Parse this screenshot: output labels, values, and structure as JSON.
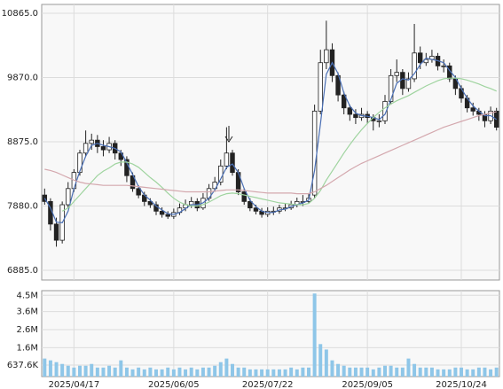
{
  "chart_data": [
    {
      "type": "candlestick",
      "ylim": [
        6734,
        11002
      ],
      "yticks": [
        {
          "value": 10865,
          "label": "10865.0"
        },
        {
          "value": 9870,
          "label": "9870.0"
        },
        {
          "value": 8875,
          "label": "8875.0"
        },
        {
          "value": 7880,
          "label": "7880.0"
        },
        {
          "value": 6885,
          "label": "6885.0"
        }
      ],
      "grid": true,
      "open": [
        8050,
        7950,
        7600,
        7350,
        7900,
        8150,
        8400,
        8700,
        8850,
        8900,
        8800,
        8750,
        8850,
        8700,
        8600,
        8350,
        8150,
        8050,
        7950,
        7900,
        7800,
        7750,
        7720,
        7780,
        7850,
        7900,
        7950,
        7850,
        8000,
        8150,
        8250,
        8500,
        8700,
        8400,
        8100,
        7950,
        7850,
        7800,
        7750,
        7800,
        7800,
        7850,
        7850,
        7900,
        7950,
        7950,
        8050,
        9350,
        10100,
        10300,
        9900,
        9600,
        9400,
        9300,
        9250,
        9300,
        9250,
        9200,
        9200,
        9500,
        9900,
        9950,
        9700,
        9850,
        10250,
        10100,
        10150,
        10200,
        10050,
        10050,
        9850,
        9700,
        9550,
        9400,
        9350,
        9300,
        9200,
        9350
      ],
      "high": [
        8150,
        8000,
        7700,
        7950,
        8250,
        8450,
        8750,
        9050,
        9000,
        8980,
        8900,
        8950,
        8900,
        8750,
        8650,
        8400,
        8200,
        8100,
        8000,
        7950,
        7860,
        7800,
        7840,
        7920,
        7980,
        8020,
        8000,
        8080,
        8220,
        8330,
        8600,
        9100,
        8750,
        8450,
        8150,
        8000,
        7900,
        7850,
        7860,
        7870,
        7900,
        7920,
        7960,
        8010,
        8050,
        8080,
        9450,
        10300,
        10750,
        10400,
        9950,
        9650,
        9450,
        9380,
        9400,
        9350,
        9300,
        9300,
        9600,
        10000,
        10150,
        10000,
        9950,
        10700,
        10350,
        10250,
        10300,
        10250,
        10150,
        10100,
        9900,
        9750,
        9600,
        9480,
        9400,
        9350,
        9420,
        9400
      ],
      "low": [
        7900,
        7500,
        7250,
        7300,
        7850,
        8100,
        8350,
        8650,
        8750,
        8700,
        8650,
        8700,
        8600,
        8500,
        8250,
        8100,
        8000,
        7880,
        7850,
        7740,
        7700,
        7680,
        7680,
        7740,
        7800,
        7850,
        7800,
        7820,
        7960,
        8100,
        8200,
        8450,
        8350,
        8050,
        7900,
        7800,
        7750,
        7700,
        7710,
        7740,
        7760,
        7800,
        7820,
        7860,
        7880,
        7920,
        8000,
        9300,
        10000,
        9800,
        9500,
        9300,
        9200,
        9150,
        9200,
        9150,
        9050,
        9100,
        9150,
        9450,
        9800,
        9600,
        9650,
        9800,
        10000,
        10050,
        10100,
        9980,
        9950,
        9800,
        9600,
        9480,
        9330,
        9280,
        9200,
        9100,
        9150,
        9050
      ],
      "close": [
        7950,
        7600,
        7350,
        7900,
        8150,
        8400,
        8700,
        8850,
        8900,
        8800,
        8750,
        8850,
        8700,
        8600,
        8350,
        8150,
        8050,
        7950,
        7900,
        7800,
        7750,
        7720,
        7780,
        7850,
        7900,
        7950,
        7850,
        8000,
        8150,
        8250,
        8500,
        8700,
        8400,
        8100,
        7950,
        7850,
        7800,
        7750,
        7800,
        7800,
        7850,
        7850,
        7900,
        7950,
        7950,
        8000,
        9350,
        10100,
        10300,
        9900,
        9600,
        9400,
        9300,
        9250,
        9300,
        9250,
        9200,
        9200,
        9500,
        9900,
        9950,
        9700,
        9850,
        10250,
        10100,
        10150,
        10200,
        10050,
        10050,
        9850,
        9700,
        9550,
        9400,
        9350,
        9300,
        9200,
        9350,
        9100
      ],
      "overlays": [
        {
          "color": "#4a6fb5",
          "values": [
            8000,
            7850,
            7630,
            7620,
            7800,
            8150,
            8420,
            8650,
            8820,
            8850,
            8820,
            8800,
            8770,
            8720,
            8550,
            8370,
            8180,
            8050,
            7970,
            7880,
            7820,
            7760,
            7750,
            7780,
            7840,
            7900,
            7900,
            7930,
            8000,
            8130,
            8300,
            8480,
            8530,
            8400,
            8150,
            7970,
            7870,
            7800,
            7780,
            7780,
            7820,
            7830,
            7870,
            7900,
            7930,
            7970,
            8430,
            9150,
            9920,
            10100,
            9930,
            9630,
            9430,
            9320,
            9280,
            9270,
            9250,
            9220,
            9300,
            9530,
            9780,
            9850,
            9830,
            9930,
            10070,
            10170,
            10150,
            10130,
            10100,
            9980,
            9870,
            9700,
            9550,
            9430,
            9350,
            9280,
            9280,
            9220
          ]
        },
        {
          "color": "#9fd49f",
          "values": [
            null,
            null,
            null,
            7800,
            7850,
            7950,
            8050,
            8150,
            8250,
            8350,
            8420,
            8470,
            8530,
            8560,
            8560,
            8530,
            8480,
            8400,
            8320,
            8250,
            8170,
            8080,
            8000,
            7940,
            7900,
            7880,
            7880,
            7900,
            7940,
            7990,
            8040,
            8070,
            8080,
            8070,
            8050,
            8030,
            8010,
            7990,
            7970,
            7950,
            7930,
            7920,
            7910,
            7900,
            7900,
            7920,
            8000,
            8120,
            8280,
            8420,
            8560,
            8700,
            8830,
            8950,
            9060,
            9160,
            9250,
            9330,
            9400,
            9460,
            9510,
            9550,
            9590,
            9640,
            9690,
            9740,
            9780,
            9820,
            9850,
            9860,
            9860,
            9850,
            9830,
            9800,
            9770,
            9730,
            9700,
            9660
          ]
        },
        {
          "color": "#d4a8ae",
          "values": [
            8450,
            8430,
            8400,
            8360,
            8320,
            8280,
            8250,
            8230,
            8220,
            8210,
            8200,
            8200,
            8200,
            8200,
            8200,
            8190,
            8180,
            8170,
            8160,
            8150,
            8140,
            8130,
            8120,
            8110,
            8100,
            8100,
            8100,
            8100,
            8100,
            8110,
            8120,
            8130,
            8130,
            8130,
            8120,
            8110,
            8100,
            8090,
            8080,
            8080,
            8080,
            8080,
            8080,
            8070,
            8070,
            8070,
            8100,
            8150,
            8200,
            8260,
            8320,
            8380,
            8440,
            8490,
            8540,
            8580,
            8620,
            8660,
            8700,
            8740,
            8780,
            8820,
            8860,
            8900,
            8940,
            8980,
            9020,
            9060,
            9100,
            9130,
            9160,
            9190,
            9220,
            9250,
            9280,
            9300,
            9320,
            9340
          ]
        }
      ]
    },
    {
      "type": "bar",
      "color": "#8ec6e8",
      "ylim": [
        0,
        4760000
      ],
      "yticks": [
        {
          "value": 4500000,
          "label": "4.5M"
        },
        {
          "value": 3600000,
          "label": "3.6M"
        },
        {
          "value": 2600000,
          "label": "2.6M"
        },
        {
          "value": 1600000,
          "label": "1.6M"
        },
        {
          "value": 637600,
          "label": "637.6K"
        }
      ],
      "categories": [
        null,
        null,
        null,
        null,
        null,
        "2025/04/17",
        null,
        null,
        null,
        null,
        null,
        null,
        null,
        null,
        null,
        null,
        null,
        null,
        null,
        null,
        null,
        null,
        "2025/06/05",
        null,
        null,
        null,
        null,
        null,
        null,
        null,
        null,
        null,
        null,
        null,
        null,
        null,
        null,
        null,
        "2025/07/22",
        null,
        null,
        null,
        null,
        null,
        null,
        null,
        null,
        null,
        null,
        null,
        null,
        null,
        null,
        null,
        null,
        "2025/09/05",
        null,
        null,
        null,
        null,
        null,
        null,
        null,
        null,
        null,
        null,
        null,
        null,
        null,
        null,
        null,
        "2025/10/24",
        null,
        null,
        null,
        null,
        null,
        null
      ],
      "values": [
        1000000,
        900000,
        800000,
        700000,
        600000,
        500000,
        600000,
        600000,
        700000,
        500000,
        500000,
        600000,
        500000,
        900000,
        500000,
        400000,
        500000,
        400000,
        500000,
        400000,
        400000,
        500000,
        400000,
        500000,
        400000,
        500000,
        400000,
        500000,
        500000,
        600000,
        800000,
        1000000,
        700000,
        500000,
        500000,
        400000,
        400000,
        400000,
        400000,
        400000,
        400000,
        400000,
        500000,
        400000,
        500000,
        500000,
        4600000,
        1800000,
        1500000,
        900000,
        700000,
        600000,
        500000,
        500000,
        500000,
        500000,
        400000,
        500000,
        600000,
        600000,
        500000,
        500000,
        1000000,
        700000,
        500000,
        500000,
        500000,
        400000,
        400000,
        400000,
        500000,
        500000,
        400000,
        400000,
        500000,
        500000,
        400000,
        500000
      ]
    }
  ]
}
